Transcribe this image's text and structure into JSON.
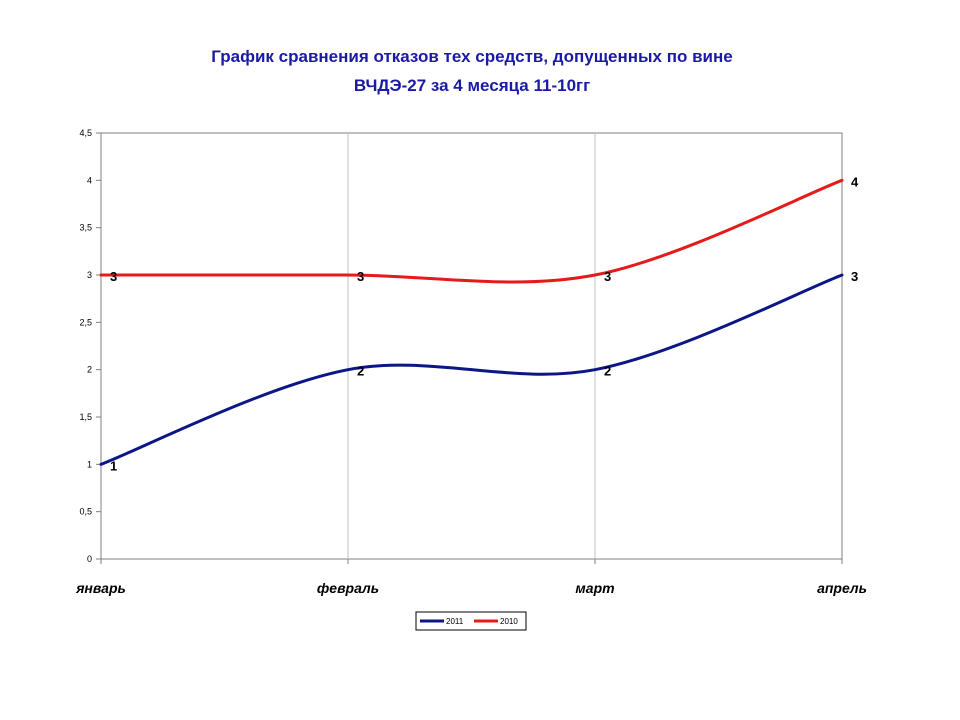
{
  "chart_data": {
    "type": "line",
    "title_line1": "График сравнения отказов тех средств, допущенных по вине",
    "title_line2": "ВЧДЭ-27 за 4 месяца 11-10гг",
    "categories": [
      "январь",
      "февраль",
      "март",
      "апрель"
    ],
    "series": [
      {
        "name": "2011",
        "values": [
          1,
          2,
          2,
          3
        ],
        "color": "#0d1685"
      },
      {
        "name": "2010",
        "values": [
          3,
          3,
          3,
          4
        ],
        "color": "#e51a1a"
      }
    ],
    "ylim": [
      0,
      4.5
    ],
    "y_ticks": [
      "0",
      "0,5",
      "1",
      "1,5",
      "2",
      "2,5",
      "3",
      "3,5",
      "4",
      "4,5"
    ],
    "y_tick_values": [
      0,
      0.5,
      1,
      1.5,
      2,
      2.5,
      3,
      3.5,
      4,
      4.5
    ],
    "smoothed": true,
    "grid": "vertical",
    "legend_position": "bottom-center"
  }
}
